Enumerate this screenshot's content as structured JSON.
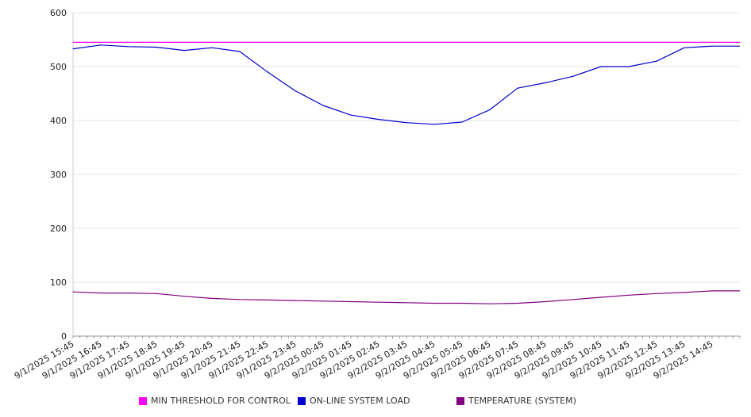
{
  "chart_data": {
    "type": "line",
    "title": "",
    "xlabel": "",
    "ylabel": "",
    "ylim": [
      0,
      600
    ],
    "y_ticks": [
      0,
      100,
      200,
      300,
      400,
      500,
      600
    ],
    "grid": true,
    "legend_position": "bottom",
    "x": [
      "9/1/2025 15:45",
      "9/1/2025 16:45",
      "9/1/2025 17:45",
      "9/1/2025 18:45",
      "9/1/2025 19:45",
      "9/1/2025 20:45",
      "9/1/2025 21:45",
      "9/1/2025 22:45",
      "9/1/2025 23:45",
      "9/2/2025 00:45",
      "9/2/2025 01:45",
      "9/2/2025 02:45",
      "9/2/2025 03:45",
      "9/2/2025 04:45",
      "9/2/2025 05:45",
      "9/2/2025 06:45",
      "9/2/2025 07:45",
      "9/2/2025 08:45",
      "9/2/2025 09:45",
      "9/2/2025 10:45",
      "9/2/2025 11:45",
      "9/2/2025 12:45",
      "9/2/2025 13:45",
      "9/2/2025 14:45"
    ],
    "series": [
      {
        "name": "MIN THRESHOLD FOR CONTROL",
        "color": "#ff00ff",
        "values": [
          545,
          545,
          545,
          545,
          545,
          545,
          545,
          545,
          545,
          545,
          545,
          545,
          545,
          545,
          545,
          545,
          545,
          545,
          545,
          545,
          545,
          545,
          545,
          545
        ]
      },
      {
        "name": "ON-LINE SYSTEM LOAD",
        "color": "#0000cc",
        "values": [
          533,
          540,
          537,
          536,
          530,
          535,
          528,
          490,
          455,
          428,
          410,
          402,
          396,
          393,
          397,
          420,
          460,
          470,
          482,
          500,
          500,
          510,
          535,
          538
        ]
      },
      {
        "name": "TEMPERATURE (SYSTEM)",
        "color": "#800080",
        "values": [
          82,
          80,
          80,
          79,
          74,
          70,
          68,
          67,
          66,
          65,
          64,
          63,
          62,
          61,
          61,
          60,
          61,
          64,
          68,
          72,
          76,
          79,
          81,
          84
        ]
      }
    ]
  }
}
